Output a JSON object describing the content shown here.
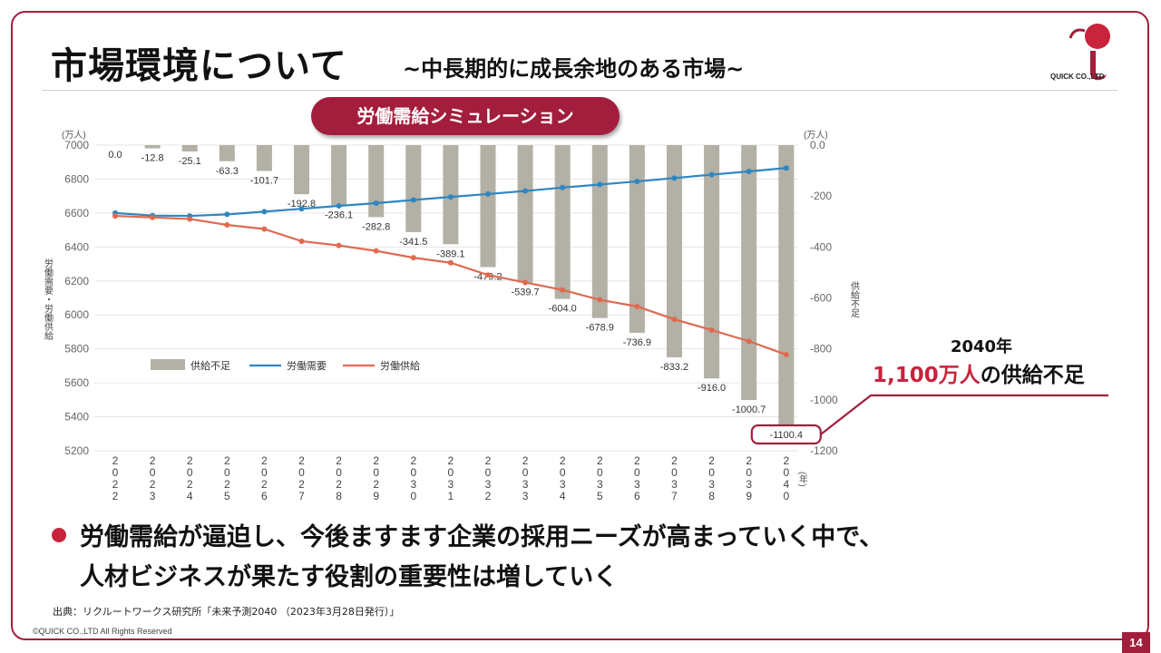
{
  "slide": {
    "title": "市場環境について",
    "subtitle": "~中長期的に成長余地のある市場~",
    "logo_text": "QUICK CO.,LTD",
    "pill_label": "労働需給シミュレーション",
    "callout_year": "2040年",
    "callout_highlight": "1,100万人",
    "callout_rest": "の供給不足",
    "bullet_line1": "労働需給が逼迫し、今後ますます企業の採用ニーズが高まっていく中で、",
    "bullet_line2": "人材ビジネスが果たす役割の重要性は増していく",
    "source": "出典：リクルートワークス研究所「未来予測2040 （2023年3月28日発行）」",
    "copyright": "©QUICK CO.,LTD All Rights Reserved",
    "page_number": "14",
    "brand_color": "#a21e3c"
  },
  "chart_data": {
    "type": "bar",
    "categories": [
      "2022",
      "2023",
      "2024",
      "2025",
      "2026",
      "2027",
      "2028",
      "2029",
      "2030",
      "2031",
      "2032",
      "2033",
      "2034",
      "2035",
      "2036",
      "2037",
      "2038",
      "2039",
      "2040"
    ],
    "x_unit": "(年)",
    "left_unit": "(万人)",
    "right_unit": "(万人)",
    "left_axis_label": "労働需要・労働供給",
    "right_axis_label": "供給不足",
    "left_ylim": [
      5200,
      7000
    ],
    "left_ticks": [
      "7000",
      "6800",
      "6600",
      "6400",
      "6200",
      "6000",
      "5800",
      "5600",
      "5400",
      "5200"
    ],
    "right_ylim": [
      -1200,
      0
    ],
    "right_ticks": [
      "0.0",
      "-200",
      "-400",
      "-600",
      "-800",
      "-1000",
      "-1200"
    ],
    "shortage": {
      "name": "供給不足",
      "color": "#b3b0a5",
      "values": [
        0.0,
        -12.8,
        -25.1,
        -63.3,
        -101.7,
        -192.8,
        -236.1,
        -282.8,
        -341.5,
        -389.1,
        -479.2,
        -539.7,
        -604.0,
        -678.9,
        -736.9,
        -833.2,
        -916.0,
        -1000.7,
        -1100.4
      ],
      "labels": [
        "0.0",
        "-12.8",
        "-25.1",
        "-63.3",
        "-101.7",
        "-192.8",
        "-236.1",
        "-282.8",
        "-341.5",
        "-389.1",
        "-479.2",
        "-539.7",
        "-604.0",
        "-678.9",
        "-736.9",
        "-833.2",
        "-916.0",
        "-1000.7",
        "-1100.4"
      ]
    },
    "series": [
      {
        "name": "労働需要",
        "color": "#2e86c1",
        "values": [
          6600,
          6585,
          6583,
          6592,
          6608,
          6625,
          6642,
          6658,
          6677,
          6695,
          6712,
          6730,
          6750,
          6768,
          6786,
          6806,
          6826,
          6845,
          6865
        ]
      },
      {
        "name": "労働供給",
        "color": "#e06a50",
        "values": [
          6583,
          6574,
          6565,
          6530,
          6506,
          6434,
          6409,
          6377,
          6337,
          6307,
          6235,
          6191,
          6147,
          6089,
          6050,
          5974,
          5911,
          5845,
          5766
        ]
      }
    ],
    "legend_position": "bottom-left",
    "highlighted_label": "-1100.4"
  }
}
